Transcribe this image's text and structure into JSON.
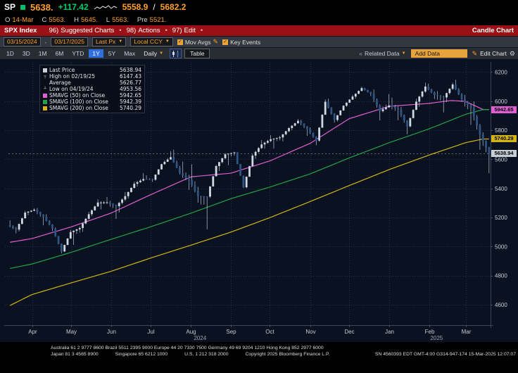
{
  "quote": {
    "ticker": "SP",
    "last": "5638.",
    "change": "+117.42",
    "range_low": "5558.9",
    "range_slash": "/",
    "range_high": "5682.2",
    "line2": [
      {
        "l": "O",
        "v": "14-Mar"
      },
      {
        "l": "C",
        "v": "5563."
      },
      {
        "l": "H",
        "v": "5645."
      },
      {
        "l": "L",
        "v": "5563."
      },
      {
        "l": "Pre",
        "v": "5521."
      }
    ]
  },
  "menubar": {
    "security": "SPX Index",
    "separator": "•",
    "items": [
      {
        "num": "96)",
        "label": "Suggested Charts"
      },
      {
        "num": "98)",
        "label": "Actions"
      },
      {
        "num": "97)",
        "label": "Edit"
      }
    ],
    "right": "Candle Chart"
  },
  "toolbar": {
    "date_from": "03/15/2024",
    "date_dash": "-",
    "date_to": "03/17/2025",
    "px_select": "Last Px",
    "ccy_select": "Local CCY",
    "mov_avgs_label": "Mov Avgs",
    "key_events_label": "Key Events",
    "ranges": [
      "1D",
      "3D",
      "1M",
      "6M",
      "YTD",
      "1Y",
      "5Y",
      "Max"
    ],
    "active_range": "1Y",
    "period_select": "Daily",
    "table_label": "Table",
    "related_data_label": "Related Data",
    "add_data_label": "Add Data",
    "edit_chart_label": "Edit Chart"
  },
  "legend": {
    "rows": [
      {
        "marker": "square",
        "color": "#c8d0da",
        "label": "Last Price",
        "value": "5638.94"
      },
      {
        "marker": "high",
        "label": "High on 02/19/25",
        "value": "6147.43"
      },
      {
        "marker": "none",
        "label": "Average",
        "value": "5626.77"
      },
      {
        "marker": "low",
        "label": "Low on 04/19/24",
        "value": "4953.56"
      },
      {
        "marker": "square",
        "color": "#e05fd5",
        "label": "SMAVG (50)  on Close",
        "value": "5942.65"
      },
      {
        "marker": "square",
        "color": "#22a348",
        "label": "SMAVG (100) on Close",
        "value": "5942.39"
      },
      {
        "marker": "square",
        "color": "#d4b515",
        "label": "SMAVG (200) on Close",
        "value": "5740.29"
      }
    ]
  },
  "chart_data": {
    "type": "candlestick",
    "security": "SPX Index",
    "range": "1Y",
    "period": "Daily",
    "last_price": 5638.94,
    "y_ticks": [
      6200,
      6000,
      5800,
      5600,
      5400,
      5200,
      5000,
      4800,
      4600
    ],
    "y_domain": [
      4460,
      6270
    ],
    "up_color": "#cfd9e4",
    "down_color": "#2d5587",
    "wick_color": "#b9c6d4",
    "grid_color": "rgba(130,150,180,0.22)",
    "x_months": [
      {
        "label": "Apr",
        "w": 2.43
      },
      {
        "label": "May",
        "w": 6.71
      },
      {
        "label": "Jun",
        "w": 11.14
      },
      {
        "label": "Jul",
        "w": 15.43
      },
      {
        "label": "Aug",
        "w": 19.86
      },
      {
        "label": "Sep",
        "w": 24.29
      },
      {
        "label": "Oct",
        "w": 28.57
      },
      {
        "label": "Nov",
        "w": 33.0
      },
      {
        "label": "Dec",
        "w": 37.29
      },
      {
        "label": "Jan",
        "w": 41.71
      },
      {
        "label": "Feb",
        "w": 46.14
      },
      {
        "label": "Mar",
        "w": 50.14
      }
    ],
    "x_years": [
      {
        "label": "2024",
        "w": 20.9
      },
      {
        "label": "2025",
        "w": 46.9
      }
    ],
    "weekly_ohlc": [
      [
        5150,
        5180,
        5091,
        5117
      ],
      [
        5117,
        5246,
        5104,
        5234
      ],
      [
        5234,
        5264,
        5216,
        5254
      ],
      [
        5254,
        5265,
        5146,
        5204
      ],
      [
        5204,
        5222,
        5107,
        5123
      ],
      [
        5123,
        5132,
        4954,
        4967
      ],
      [
        4967,
        5114,
        4963,
        5100
      ],
      [
        5100,
        5139,
        5011,
        5128
      ],
      [
        5128,
        5239,
        5101,
        5223
      ],
      [
        5223,
        5325,
        5209,
        5303
      ],
      [
        5303,
        5341,
        5256,
        5305
      ],
      [
        5305,
        5315,
        5191,
        5278
      ],
      [
        5278,
        5375,
        5234,
        5347
      ],
      [
        5347,
        5447,
        5331,
        5432
      ],
      [
        5432,
        5505,
        5413,
        5465
      ],
      [
        5465,
        5490,
        5446,
        5460
      ],
      [
        5460,
        5570,
        5453,
        5567
      ],
      [
        5567,
        5656,
        5563,
        5615
      ],
      [
        5615,
        5667,
        5497,
        5505
      ],
      [
        5505,
        5585,
        5390,
        5459
      ],
      [
        5459,
        5566,
        5302,
        5347
      ],
      [
        5347,
        5350,
        5119,
        5344
      ],
      [
        5344,
        5561,
        5335,
        5554
      ],
      [
        5554,
        5643,
        5520,
        5635
      ],
      [
        5635,
        5652,
        5560,
        5648
      ],
      [
        5648,
        5650,
        5403,
        5408
      ],
      [
        5408,
        5636,
        5402,
        5626
      ],
      [
        5626,
        5733,
        5604,
        5703
      ],
      [
        5703,
        5767,
        5674,
        5738
      ],
      [
        5738,
        5762,
        5674,
        5751
      ],
      [
        5751,
        5822,
        5724,
        5815
      ],
      [
        5815,
        5878,
        5800,
        5865
      ],
      [
        5865,
        5872,
        5762,
        5808
      ],
      [
        5808,
        5820,
        5697,
        5729
      ],
      [
        5729,
        6012,
        5722,
        5996
      ],
      [
        5996,
        6017,
        5853,
        5871
      ],
      [
        5871,
        5972,
        5860,
        5969
      ],
      [
        5969,
        6044,
        5961,
        6032
      ],
      [
        6032,
        6100,
        6019,
        6090
      ],
      [
        6090,
        6092,
        6036,
        6051
      ],
      [
        6051,
        6080,
        5868,
        5931
      ],
      [
        5931,
        6049,
        5923,
        5971
      ],
      [
        5971,
        6025,
        5869,
        5942
      ],
      [
        5942,
        5960,
        5773,
        5827
      ],
      [
        5827,
        6017,
        5820,
        5997
      ],
      [
        5997,
        6128,
        5962,
        6101
      ],
      [
        6101,
        6121,
        6015,
        6041
      ],
      [
        6041,
        6070,
        5923,
        6026
      ],
      [
        6026,
        6127,
        5994,
        6115
      ],
      [
        6115,
        6147,
        5996,
        6013
      ],
      [
        6013,
        6043,
        5837,
        5955
      ],
      [
        5955,
        5999,
        5666,
        5770
      ],
      [
        5770,
        5786,
        5504,
        5639
      ]
    ],
    "ma_series": [
      {
        "name": "SMAVG (50) on Close",
        "color": "#e05fd5",
        "points": [
          [
            0,
            5030
          ],
          [
            2.4,
            5055
          ],
          [
            6.7,
            5135
          ],
          [
            11.1,
            5230
          ],
          [
            15.4,
            5355
          ],
          [
            19.9,
            5480
          ],
          [
            24.3,
            5505
          ],
          [
            28.6,
            5590
          ],
          [
            33,
            5710
          ],
          [
            37.3,
            5880
          ],
          [
            41.7,
            5965
          ],
          [
            46.1,
            5985
          ],
          [
            48.5,
            6005
          ],
          [
            50.1,
            5998
          ],
          [
            52,
            5943
          ]
        ]
      },
      {
        "name": "SMAVG (100) on Close",
        "color": "#22a348",
        "points": [
          [
            0,
            4850
          ],
          [
            2.4,
            4880
          ],
          [
            6.7,
            4960
          ],
          [
            11.1,
            5050
          ],
          [
            15.4,
            5135
          ],
          [
            19.9,
            5230
          ],
          [
            24.3,
            5330
          ],
          [
            28.6,
            5410
          ],
          [
            33,
            5500
          ],
          [
            37.3,
            5610
          ],
          [
            41.7,
            5715
          ],
          [
            46.1,
            5810
          ],
          [
            50.1,
            5910
          ],
          [
            52,
            5942
          ]
        ]
      },
      {
        "name": "SMAVG (200) on Close",
        "color": "#d4b515",
        "points": [
          [
            0,
            4595
          ],
          [
            2.4,
            4670
          ],
          [
            6.7,
            4750
          ],
          [
            11.1,
            4830
          ],
          [
            15.4,
            4920
          ],
          [
            19.9,
            5010
          ],
          [
            24.3,
            5100
          ],
          [
            28.6,
            5200
          ],
          [
            33,
            5310
          ],
          [
            37.3,
            5420
          ],
          [
            41.7,
            5530
          ],
          [
            46.1,
            5630
          ],
          [
            50.1,
            5715
          ],
          [
            52,
            5740
          ]
        ]
      }
    ],
    "axis_tags": [
      {
        "text": "5942.65",
        "value": 5942.65,
        "bg": "#e05fd5",
        "fg": "#000000"
      },
      {
        "text": "5740.29",
        "value": 5740.29,
        "bg": "#d4b515",
        "fg": "#000000"
      },
      {
        "text": "5638.94",
        "value": 5638.94,
        "bg": "#c7cdd4",
        "fg": "#000000"
      }
    ]
  },
  "footer": {
    "line1": "Australia 61 2 9777 8600 Brazil 5511 2395 9000 Europe 44 20 7330 7500 Germany 49 69 9204 1210 Hong Kong 852 2977 6000",
    "japan": "Japan 81 3 4565 8900",
    "singapore": "Singapore 65 6212 1000",
    "us": "U.S. 1 212 318 2000",
    "copyright": "Copyright 2025 Bloomberg Finance L.P.",
    "sn": "SN 4560393 EDT  GMT-4:00 G314-947-174 15-Mar-2025 12:07:07"
  }
}
